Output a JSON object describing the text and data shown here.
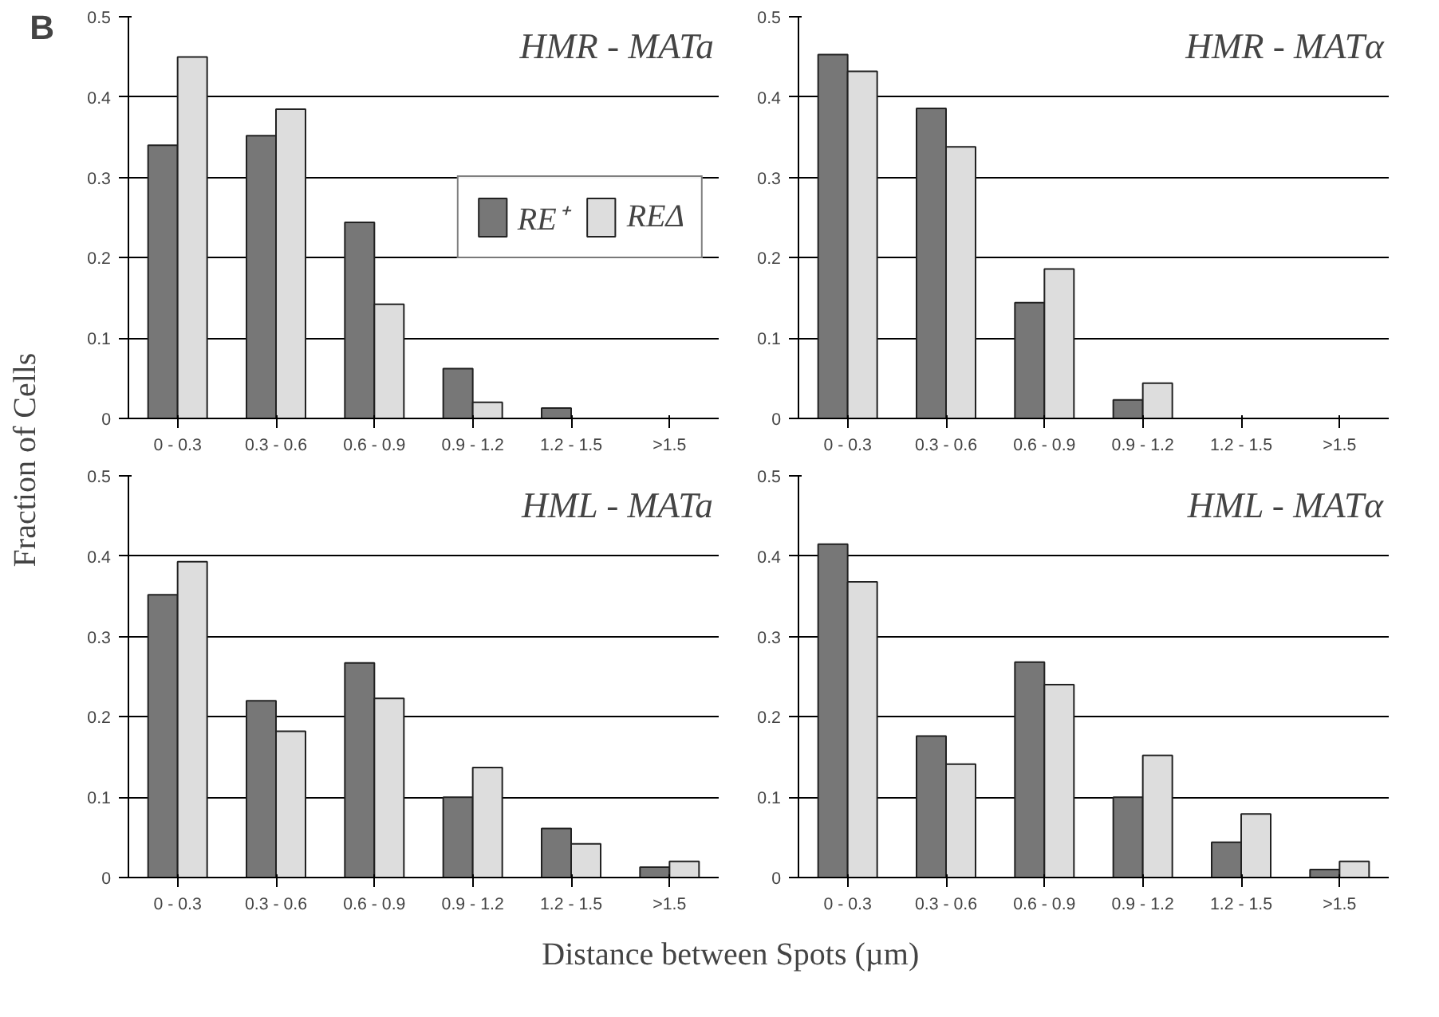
{
  "chart_data": [
    {
      "type": "bar",
      "title": "HMR - MATa",
      "ylabel": "Fraction of Cells",
      "annotations": [
        "B"
      ],
      "categories": [
        "0 - 0.3",
        "0.3 - 0.6",
        "0.6 - 0.9",
        "0.9 - 1.2",
        "1.2 - 1.5",
        ">1.5"
      ],
      "ylim": [
        0,
        0.5
      ],
      "yticks": [
        0,
        0.1,
        0.2,
        0.3,
        0.4,
        0.5
      ],
      "grid": "y",
      "legend": "right",
      "series": [
        {
          "name": "RE⁺",
          "color": "#777777",
          "values": [
            0.34,
            0.352,
            0.244,
            0.062,
            0.013,
            null
          ]
        },
        {
          "name": "REΔ",
          "color": "#dddddd",
          "values": [
            0.45,
            0.385,
            0.142,
            0.02,
            null,
            null
          ]
        }
      ]
    },
    {
      "type": "bar",
      "title": "HMR - MATα",
      "categories": [
        "0 - 0.3",
        "0.3 - 0.6",
        "0.6 - 0.9",
        "0.9 - 1.2",
        "1.2 - 1.5",
        ">1.5"
      ],
      "ylim": [
        0,
        0.5
      ],
      "yticks": [
        0,
        0.1,
        0.2,
        0.3,
        0.4,
        0.5
      ],
      "grid": "y",
      "series": [
        {
          "color": "#777777",
          "values": [
            0.453,
            0.386,
            0.144,
            0.023,
            null,
            null
          ]
        },
        {
          "color": "#dddddd",
          "values": [
            0.432,
            0.338,
            0.186,
            0.044,
            null,
            null
          ]
        }
      ]
    },
    {
      "type": "bar",
      "title": "HML - MATa",
      "xlabel": "Distance between Spots (µm)",
      "categories": [
        "0 - 0.3",
        "0.3 - 0.6",
        "0.6 - 0.9",
        "0.9 - 1.2",
        "1.2 - 1.5",
        ">1.5"
      ],
      "ylim": [
        0,
        0.5
      ],
      "yticks": [
        0,
        0.1,
        0.2,
        0.3,
        0.4,
        0.5
      ],
      "grid": "y",
      "series": [
        {
          "color": "#777777",
          "values": [
            0.352,
            0.22,
            0.267,
            0.1,
            0.061,
            0.013
          ]
        },
        {
          "color": "#dddddd",
          "values": [
            0.393,
            0.182,
            0.223,
            0.137,
            0.042,
            0.02
          ]
        }
      ]
    },
    {
      "type": "bar",
      "title": "HML - MATα",
      "categories": [
        "0 - 0.3",
        "0.3 - 0.6",
        "0.6 - 0.9",
        "0.9 - 1.2",
        "1.2 - 1.5",
        ">1.5"
      ],
      "ylim": [
        0,
        0.5
      ],
      "yticks": [
        0,
        0.1,
        0.2,
        0.3,
        0.4,
        0.5
      ],
      "grid": "y",
      "series": [
        {
          "color": "#777777",
          "values": [
            0.415,
            0.176,
            0.268,
            0.1,
            0.044,
            0.01
          ]
        },
        {
          "color": "#dddddd",
          "values": [
            0.368,
            0.141,
            0.24,
            0.152,
            0.079,
            0.02
          ]
        }
      ]
    }
  ]
}
